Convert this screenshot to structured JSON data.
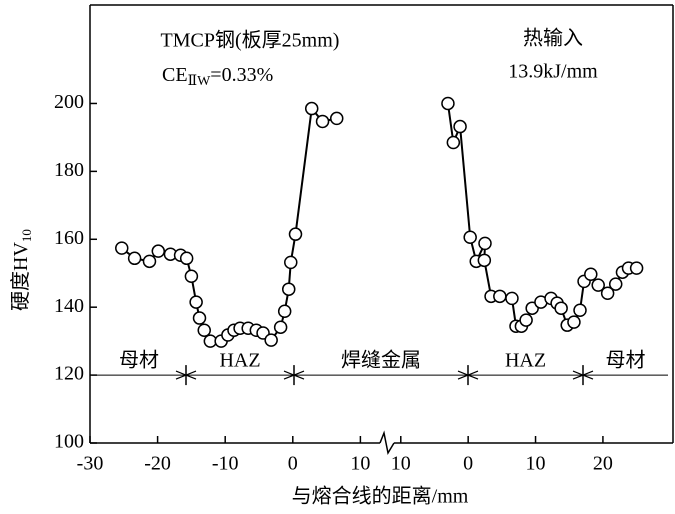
{
  "chart_data": {
    "type": "line",
    "ylabel": "硬度HV",
    "ylabel_sub": "10",
    "xlabel": "与熔合线的距离/mm",
    "ylim": [
      100,
      229
    ],
    "yticks": [
      100,
      120,
      140,
      160,
      180,
      200
    ],
    "annotations": {
      "steel": "TMCP钢(板厚25mm)",
      "ce": "CE",
      "ce_sub": "ⅡW",
      "ce_val": "=0.33%",
      "heat": "热输入",
      "heat_val": "13.9kJ/mm"
    },
    "zones": [
      "母材",
      "HAZ",
      "焊缝金属",
      "HAZ",
      "母材"
    ],
    "color": "#000000",
    "panels": [
      {
        "xlim": [
          -30,
          12.9
        ],
        "xticks": [
          -30,
          -20,
          -10,
          0,
          10
        ],
        "x": [
          -25.3,
          -23.4,
          -21.2,
          -19.9,
          -18.1,
          -16.6,
          -15.7,
          -15,
          -14.3,
          -13.8,
          -13.1,
          -12.2,
          -10.6,
          -9.6,
          -8.7,
          -7.8,
          -6.6,
          -5.4,
          -4.4,
          -3.2,
          -1.8,
          -1.2,
          -0.6,
          -0.3,
          0.4,
          2.8,
          4.4,
          6.5
        ],
        "values": [
          157.4,
          154.4,
          153.5,
          156.5,
          155.6,
          155.3,
          154.4,
          149.1,
          141.5,
          136.8,
          133.2,
          130,
          130,
          131.8,
          133.2,
          133.8,
          133.8,
          133.2,
          132.4,
          130.3,
          134.1,
          138.8,
          145.3,
          153.2,
          161.5,
          198.5,
          194.7,
          195.6
        ]
      },
      {
        "xlim": [
          -11.6,
          30.4
        ],
        "xticks": [
          {
            "value": -10,
            "label": "10"
          },
          0,
          10,
          20
        ],
        "x": [
          -3,
          -2.2,
          -1.2,
          0.3,
          1.2,
          2.5,
          2.4,
          3.4,
          4.7,
          6.5,
          7.1,
          7.9,
          8.6,
          9.5,
          10.8,
          12.3,
          13.2,
          13.8,
          14.7,
          15.7,
          16.6,
          17.2,
          18.2,
          19.3,
          20.7,
          21.9,
          22.9,
          23.8,
          25
        ],
        "values": [
          200,
          188.5,
          193.2,
          160.6,
          153.5,
          158.8,
          153.8,
          143.2,
          143.2,
          142.6,
          134.4,
          134.4,
          136.2,
          139.7,
          141.5,
          142.6,
          141.2,
          139.7,
          134.7,
          135.6,
          139.1,
          147.6,
          149.7,
          146.5,
          144.1,
          146.8,
          150.3,
          151.5,
          151.5
        ]
      }
    ]
  }
}
